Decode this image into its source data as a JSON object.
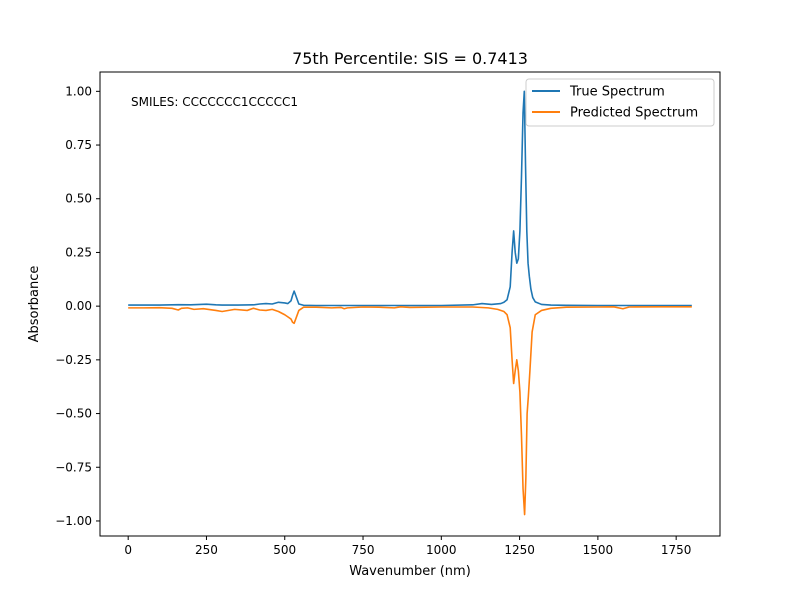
{
  "chart_data": {
    "type": "line",
    "title": "75th Percentile: SIS = 0.7413",
    "xlabel": "Wavenumber (nm)",
    "ylabel": "Absorbance",
    "annotation": "SMILES: CCCCCCC1CCCCC1",
    "xlim": [
      -90,
      1890
    ],
    "ylim": [
      -1.07,
      1.09
    ],
    "xticks": [
      0,
      250,
      500,
      750,
      1000,
      1250,
      1500,
      1750
    ],
    "yticks": [
      -1.0,
      -0.75,
      -0.5,
      -0.25,
      0.0,
      0.25,
      0.5,
      0.75,
      1.0
    ],
    "ytick_labels": [
      "−1.00",
      "−0.75",
      "−0.50",
      "−0.25",
      "0.00",
      "0.25",
      "0.50",
      "0.75",
      "1.00"
    ],
    "grid": false,
    "legend_position": "upper right",
    "series": [
      {
        "name": "True Spectrum",
        "color": "#1f77b4",
        "x": [
          0,
          100,
          160,
          200,
          230,
          250,
          280,
          300,
          350,
          400,
          420,
          440,
          460,
          480,
          500,
          510,
          520,
          525,
          530,
          535,
          545,
          560,
          600,
          700,
          800,
          900,
          1000,
          1100,
          1130,
          1160,
          1190,
          1200,
          1210,
          1220,
          1226,
          1231,
          1236,
          1241,
          1246,
          1251,
          1256,
          1261,
          1265,
          1269,
          1273,
          1277,
          1281,
          1286,
          1292,
          1300,
          1320,
          1350,
          1400,
          1500,
          1600,
          1700,
          1800
        ],
        "y": [
          0.005,
          0.005,
          0.007,
          0.006,
          0.008,
          0.009,
          0.006,
          0.005,
          0.005,
          0.006,
          0.01,
          0.012,
          0.01,
          0.018,
          0.015,
          0.012,
          0.025,
          0.05,
          0.07,
          0.05,
          0.01,
          0.004,
          0.003,
          0.003,
          0.003,
          0.003,
          0.003,
          0.006,
          0.012,
          0.008,
          0.012,
          0.018,
          0.03,
          0.09,
          0.25,
          0.35,
          0.25,
          0.2,
          0.22,
          0.35,
          0.6,
          0.9,
          1.0,
          0.65,
          0.35,
          0.2,
          0.14,
          0.08,
          0.04,
          0.02,
          0.008,
          0.005,
          0.004,
          0.003,
          0.003,
          0.003,
          0.003
        ]
      },
      {
        "name": "Predicted Spectrum",
        "color": "#ff7f0e",
        "x": [
          0,
          50,
          100,
          140,
          160,
          170,
          190,
          210,
          240,
          280,
          300,
          340,
          380,
          400,
          420,
          440,
          460,
          480,
          500,
          510,
          520,
          525,
          530,
          535,
          545,
          555,
          560,
          600,
          650,
          680,
          690,
          700,
          750,
          800,
          850,
          870,
          900,
          1000,
          1100,
          1150,
          1180,
          1200,
          1210,
          1220,
          1226,
          1231,
          1236,
          1241,
          1246,
          1251,
          1256,
          1261,
          1266,
          1270,
          1274,
          1278,
          1283,
          1290,
          1300,
          1320,
          1350,
          1400,
          1500,
          1550,
          1580,
          1600,
          1700,
          1800
        ],
        "y": [
          -0.008,
          -0.008,
          -0.007,
          -0.01,
          -0.018,
          -0.01,
          -0.008,
          -0.015,
          -0.012,
          -0.02,
          -0.025,
          -0.015,
          -0.02,
          -0.01,
          -0.018,
          -0.02,
          -0.015,
          -0.025,
          -0.04,
          -0.05,
          -0.06,
          -0.075,
          -0.08,
          -0.06,
          -0.02,
          -0.01,
          -0.005,
          -0.005,
          -0.008,
          -0.006,
          -0.012,
          -0.008,
          -0.004,
          -0.005,
          -0.008,
          -0.003,
          -0.006,
          -0.004,
          -0.004,
          -0.008,
          -0.015,
          -0.025,
          -0.04,
          -0.1,
          -0.25,
          -0.36,
          -0.3,
          -0.25,
          -0.3,
          -0.4,
          -0.6,
          -0.85,
          -0.97,
          -0.8,
          -0.5,
          -0.42,
          -0.3,
          -0.12,
          -0.04,
          -0.02,
          -0.01,
          -0.005,
          -0.004,
          -0.003,
          -0.012,
          -0.004,
          -0.003,
          -0.003
        ]
      }
    ]
  }
}
